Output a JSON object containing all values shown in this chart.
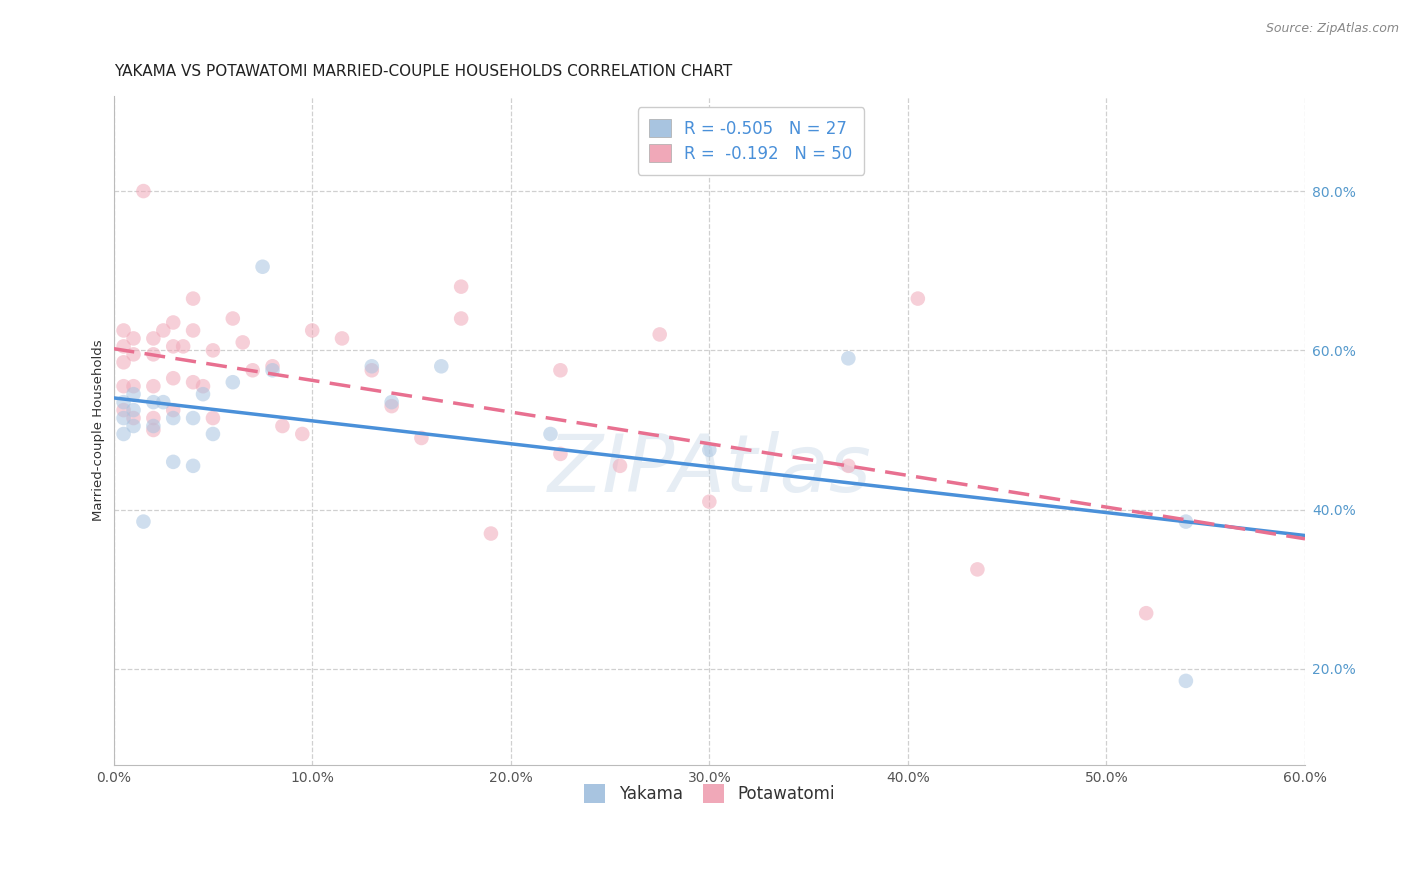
{
  "title": "YAKAMA VS POTAWATOMI MARRIED-COUPLE HOUSEHOLDS CORRELATION CHART",
  "source": "Source: ZipAtlas.com",
  "ylabel": "Married-couple Households",
  "xlim": [
    0.0,
    0.6
  ],
  "ylim": [
    0.08,
    0.92
  ],
  "xtick_vals": [
    0.0,
    0.1,
    0.2,
    0.3,
    0.4,
    0.5,
    0.6
  ],
  "ytick_vals": [
    0.2,
    0.4,
    0.6,
    0.8
  ],
  "legend_r_yakama": "R = -0.505",
  "legend_n_yakama": "N = 27",
  "legend_r_potawatomi": "R =  -0.192",
  "legend_n_potawatomi": "N = 50",
  "yakama_color": "#a8c4e0",
  "potawatomi_color": "#f0a8b8",
  "yakama_line_color": "#4a90d9",
  "potawatomi_line_color": "#e87090",
  "watermark": "ZIPAtlas",
  "background_color": "#ffffff",
  "grid_color": "#d0d0d0",
  "yakama_x": [
    0.005,
    0.005,
    0.005,
    0.01,
    0.01,
    0.01,
    0.015,
    0.02,
    0.02,
    0.025,
    0.03,
    0.03,
    0.04,
    0.04,
    0.045,
    0.05,
    0.06,
    0.075,
    0.08,
    0.13,
    0.14,
    0.165,
    0.22,
    0.3,
    0.37,
    0.54,
    0.54
  ],
  "yakama_y": [
    0.535,
    0.515,
    0.495,
    0.545,
    0.525,
    0.505,
    0.385,
    0.535,
    0.505,
    0.535,
    0.515,
    0.46,
    0.515,
    0.455,
    0.545,
    0.495,
    0.56,
    0.705,
    0.575,
    0.58,
    0.535,
    0.58,
    0.495,
    0.475,
    0.59,
    0.385,
    0.185
  ],
  "potawatomi_x": [
    0.005,
    0.005,
    0.005,
    0.005,
    0.005,
    0.01,
    0.01,
    0.01,
    0.01,
    0.015,
    0.02,
    0.02,
    0.02,
    0.02,
    0.02,
    0.025,
    0.03,
    0.03,
    0.03,
    0.03,
    0.035,
    0.04,
    0.04,
    0.04,
    0.045,
    0.05,
    0.05,
    0.06,
    0.065,
    0.07,
    0.08,
    0.085,
    0.095,
    0.1,
    0.115,
    0.13,
    0.14,
    0.155,
    0.175,
    0.175,
    0.19,
    0.225,
    0.225,
    0.255,
    0.275,
    0.3,
    0.37,
    0.405,
    0.435,
    0.52
  ],
  "potawatomi_y": [
    0.625,
    0.605,
    0.585,
    0.555,
    0.525,
    0.615,
    0.595,
    0.555,
    0.515,
    0.8,
    0.615,
    0.595,
    0.555,
    0.515,
    0.5,
    0.625,
    0.635,
    0.605,
    0.565,
    0.525,
    0.605,
    0.665,
    0.625,
    0.56,
    0.555,
    0.6,
    0.515,
    0.64,
    0.61,
    0.575,
    0.58,
    0.505,
    0.495,
    0.625,
    0.615,
    0.575,
    0.53,
    0.49,
    0.68,
    0.64,
    0.37,
    0.575,
    0.47,
    0.455,
    0.62,
    0.41,
    0.455,
    0.665,
    0.325,
    0.27
  ],
  "title_fontsize": 11,
  "axis_label_fontsize": 9.5,
  "tick_fontsize": 10,
  "legend_fontsize": 12,
  "source_fontsize": 9,
  "marker_size": 110,
  "marker_alpha": 0.55,
  "line_width": 2.5
}
